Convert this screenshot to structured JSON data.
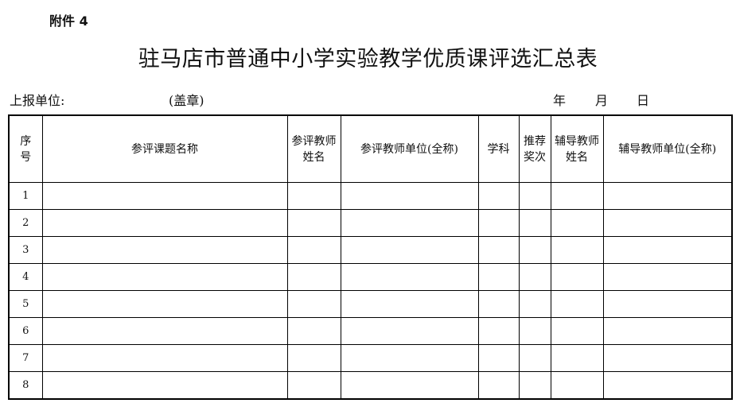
{
  "attachment_label": "附件 4",
  "title": "驻马店市普通中小学实验教学优质课评选汇总表",
  "report_unit_label": "上报单位:",
  "seal_label": "(盖章)",
  "date": {
    "year": "年",
    "month": "月",
    "day": "日"
  },
  "table": {
    "headers": [
      "序\n号",
      "参评课题名称",
      "参评教师\n姓名",
      "参评教师单位(全称)",
      "学科",
      "推荐\n奖次",
      "辅导教师\n姓名",
      "辅导教师单位(全称)"
    ],
    "rows": [
      [
        "1"
      ],
      [
        "2"
      ],
      [
        "3"
      ],
      [
        "4"
      ],
      [
        "5"
      ],
      [
        "6"
      ],
      [
        "7"
      ],
      [
        "8"
      ]
    ]
  }
}
